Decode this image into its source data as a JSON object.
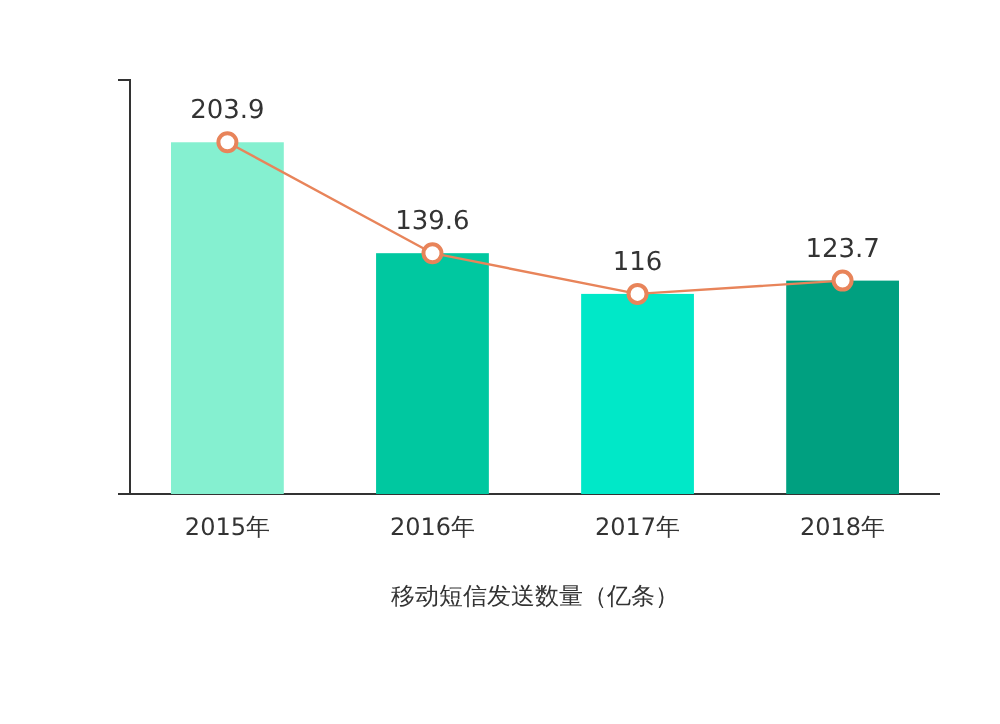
{
  "chart_data": {
    "type": "bar",
    "xlabel": "移动短信发送数量（亿条）",
    "categories": [
      "2015年",
      "2016年",
      "2017年",
      "2018年"
    ],
    "ylim": [
      0,
      240
    ],
    "tick_labels": "x",
    "marker": "circle",
    "series": [
      {
        "colors": [
          "#85f0d0",
          "#00c8a0",
          "#00e8c8",
          "#00a080"
        ],
        "values": [
          203.9,
          139.6,
          116,
          123.7
        ]
      },
      {
        "type": "line",
        "color": "#e8845a",
        "values": [
          203.9,
          139.6,
          116,
          123.7
        ],
        "value_labels": [
          "203.9",
          "139.6",
          "116",
          "123.7"
        ]
      }
    ]
  }
}
